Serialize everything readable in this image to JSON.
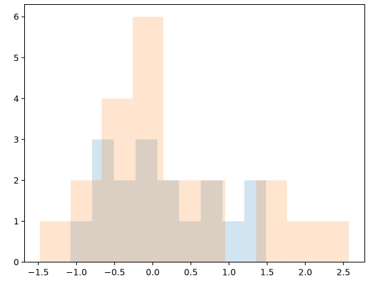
{
  "chart_data": {
    "type": "bar",
    "title": "",
    "xlabel": "",
    "ylabel": "",
    "xlim": [
      -1.68,
      2.78
    ],
    "ylim": [
      0,
      6.3
    ],
    "grid": false,
    "legend": "none",
    "xticks": [
      -1.5,
      -1.0,
      -0.5,
      0.0,
      0.5,
      1.0,
      1.5,
      2.0,
      2.5
    ],
    "xtick_labels": [
      "−1.5",
      "−1.0",
      "−0.5",
      "0.0",
      "0.5",
      "1.0",
      "1.5",
      "2.0",
      "2.5"
    ],
    "yticks": [
      0,
      1,
      2,
      3,
      4,
      5,
      6
    ],
    "ytick_labels": [
      "0",
      "1",
      "2",
      "3",
      "4",
      "5",
      "6"
    ],
    "series": [
      {
        "color": "#1f77b4",
        "opacity": 0.2,
        "bin_edges": [
          -1.08,
          -0.795,
          -0.51,
          -0.225,
          0.06,
          0.345,
          0.63,
          0.915,
          1.2,
          1.485
        ],
        "counts": [
          1,
          3,
          2,
          3,
          2,
          1,
          2,
          1,
          2
        ]
      },
      {
        "color": "#ff7f0e",
        "opacity": 0.2,
        "bin_edges": [
          -1.48,
          -1.075,
          -0.67,
          -0.265,
          0.14,
          0.545,
          0.95,
          1.355,
          1.76,
          2.165,
          2.57
        ],
        "counts": [
          1,
          2,
          4,
          6,
          2,
          2,
          0,
          2,
          1,
          1
        ]
      }
    ]
  }
}
